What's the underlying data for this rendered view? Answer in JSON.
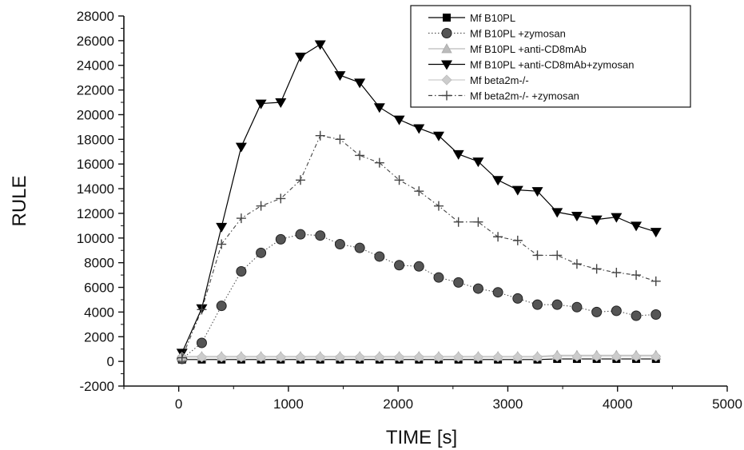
{
  "chart_data": {
    "type": "line",
    "title": "",
    "xlabel": "TIME [s]",
    "ylabel": "RULE",
    "xlim": [
      -500,
      5000
    ],
    "ylim": [
      -2000,
      28000
    ],
    "x_ticks": [
      0,
      1000,
      2000,
      3000,
      4000,
      5000
    ],
    "x_tick_labels": [
      "0",
      "1000",
      "2000",
      "3000",
      "4000",
      "5000"
    ],
    "y_ticks": [
      -2000,
      0,
      2000,
      4000,
      6000,
      8000,
      10000,
      12000,
      14000,
      16000,
      18000,
      20000,
      22000,
      24000,
      26000,
      28000
    ],
    "y_tick_labels": [
      "-2000",
      "0",
      "2000",
      "4000",
      "6000",
      "8000",
      "10000",
      "12000",
      "14000",
      "16000",
      "18000",
      "20000",
      "22000",
      "24000",
      "26000",
      "28000"
    ],
    "grid": false,
    "legend_position": "top-right",
    "x": [
      30,
      210,
      390,
      570,
      750,
      930,
      1110,
      1290,
      1470,
      1650,
      1830,
      2010,
      2190,
      2370,
      2550,
      2730,
      2910,
      3090,
      3270,
      3450,
      3630,
      3810,
      3990,
      4170,
      4350
    ],
    "series": [
      {
        "name": "Mf B10PL",
        "marker": "square",
        "line": "solid",
        "color": "#000000",
        "values": [
          150,
          150,
          150,
          150,
          150,
          150,
          150,
          150,
          150,
          150,
          150,
          150,
          150,
          150,
          150,
          150,
          150,
          150,
          150,
          200,
          200,
          200,
          200,
          200,
          200
        ]
      },
      {
        "name": "Mf B10PL +zymosan",
        "marker": "circle",
        "line": "dotted",
        "color": "#555555",
        "values": [
          200,
          1500,
          4500,
          7300,
          8800,
          9900,
          10300,
          10200,
          9500,
          9200,
          8500,
          7800,
          7700,
          6800,
          6400,
          5900,
          5600,
          5100,
          4600,
          4600,
          4400,
          4000,
          4100,
          3700,
          3800
        ]
      },
      {
        "name": "Mf B10PL +anti-CD8mAb",
        "marker": "triangle-up",
        "line": "solid",
        "color": "#bbbbbb",
        "values": [
          400,
          400,
          400,
          400,
          400,
          400,
          400,
          400,
          400,
          400,
          400,
          400,
          400,
          400,
          400,
          400,
          400,
          400,
          400,
          500,
          500,
          500,
          500,
          500,
          500
        ]
      },
      {
        "name": "Mf B10PL +anti-CD8mAb+zymosan",
        "marker": "triangle-down",
        "line": "solid",
        "color": "#000000",
        "values": [
          700,
          4300,
          10900,
          17400,
          20900,
          21000,
          24700,
          25700,
          23200,
          22600,
          20600,
          19600,
          18900,
          18300,
          16800,
          16200,
          14700,
          13900,
          13800,
          12100,
          11800,
          11500,
          11700,
          11000,
          10500
        ]
      },
      {
        "name": "Mf beta2m-/-",
        "marker": "diamond",
        "line": "solid",
        "color": "#cccccc",
        "values": [
          350,
          350,
          350,
          350,
          350,
          350,
          350,
          350,
          350,
          350,
          350,
          350,
          350,
          350,
          350,
          350,
          350,
          350,
          350,
          400,
          400,
          400,
          400,
          400,
          400
        ]
      },
      {
        "name": "Mf beta2m-/- +zymosan",
        "marker": "plus",
        "line": "dashdot",
        "color": "#444444",
        "values": [
          300,
          4200,
          9500,
          11600,
          12600,
          13200,
          14700,
          18300,
          18000,
          16700,
          16100,
          14700,
          13800,
          12600,
          11300,
          11300,
          10100,
          9800,
          8600,
          8600,
          7900,
          7500,
          7200,
          7000,
          6500
        ]
      }
    ]
  }
}
